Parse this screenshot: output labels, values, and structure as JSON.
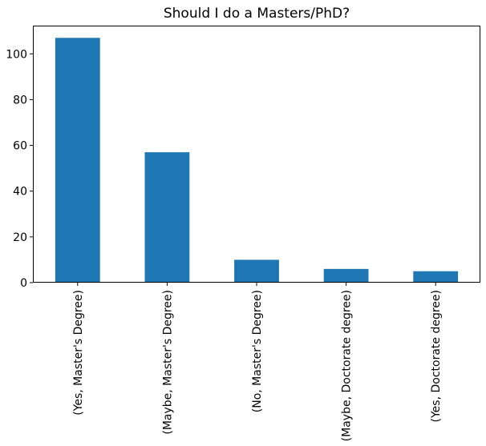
{
  "chart_data": {
    "type": "bar",
    "title": "Should I do a Masters/PhD?",
    "xlabel": "",
    "ylabel": "",
    "categories": [
      "(Yes, Master's Degree)",
      "(Maybe, Master's Degree)",
      "(No, Master's Degree)",
      "(Maybe, Doctorate degree)",
      "(Yes, Doctorate degree)"
    ],
    "values": [
      107,
      57,
      10,
      6,
      5
    ],
    "ylim": [
      0,
      112.35
    ],
    "yticks": [
      0,
      20,
      40,
      60,
      80,
      100
    ],
    "bar_color": "#1f77b4",
    "grid": false,
    "legend": "none",
    "xtick_rotation": "vertical"
  }
}
